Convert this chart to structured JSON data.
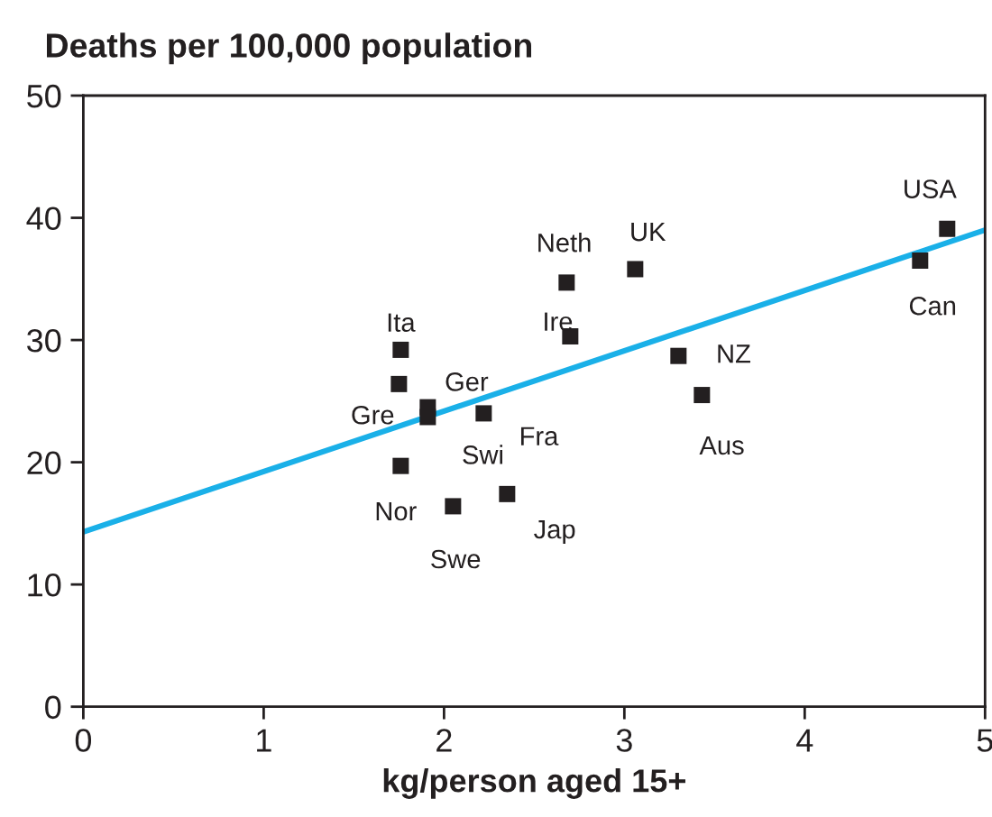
{
  "chart_data": {
    "type": "scatter",
    "title": "Deaths per 100,000 population",
    "xlabel": "kg/person aged 15+",
    "xlim": [
      0,
      5
    ],
    "ylim": [
      0,
      50
    ],
    "xticks": [
      0,
      1,
      2,
      3,
      4,
      5
    ],
    "yticks": [
      0,
      10,
      20,
      30,
      40,
      50
    ],
    "grid": false,
    "legend": false,
    "series": [
      {
        "marker": "square",
        "color": "#231f20",
        "x": [
          1.76,
          1.75,
          1.91,
          1.91,
          2.22,
          1.76,
          2.05,
          2.35,
          2.68,
          2.7,
          3.06,
          3.3,
          3.43,
          4.64,
          4.79
        ],
        "values": [
          29.2,
          26.4,
          24.5,
          23.7,
          24.0,
          19.7,
          16.4,
          17.4,
          34.7,
          30.3,
          35.8,
          28.7,
          25.5,
          36.5,
          39.1
        ]
      },
      {
        "type": "line",
        "marker": "none",
        "color": "#1ab0e8",
        "x": [
          0,
          5
        ],
        "values": [
          14.3,
          39.0
        ]
      }
    ],
    "annotations": [
      {
        "text": "Ita",
        "x": 1.76,
        "y": 29.2
      },
      {
        "text": "Ger",
        "x": 1.75,
        "y": 26.4
      },
      {
        "text": "Gre",
        "x": 1.91,
        "y": 24.5
      },
      {
        "text": "Swi",
        "x": 1.91,
        "y": 23.7
      },
      {
        "text": "Fra",
        "x": 2.22,
        "y": 24.0
      },
      {
        "text": "Nor",
        "x": 1.76,
        "y": 19.7
      },
      {
        "text": "Swe",
        "x": 2.05,
        "y": 16.4
      },
      {
        "text": "Jap",
        "x": 2.35,
        "y": 17.4
      },
      {
        "text": "Neth",
        "x": 2.68,
        "y": 34.7
      },
      {
        "text": "Ire",
        "x": 2.7,
        "y": 30.3
      },
      {
        "text": "UK",
        "x": 3.06,
        "y": 35.8
      },
      {
        "text": "NZ",
        "x": 3.3,
        "y": 28.7
      },
      {
        "text": "Aus",
        "x": 3.43,
        "y": 25.5
      },
      {
        "text": "Can",
        "x": 4.64,
        "y": 36.5
      },
      {
        "text": "USA",
        "x": 4.79,
        "y": 39.1
      }
    ]
  }
}
